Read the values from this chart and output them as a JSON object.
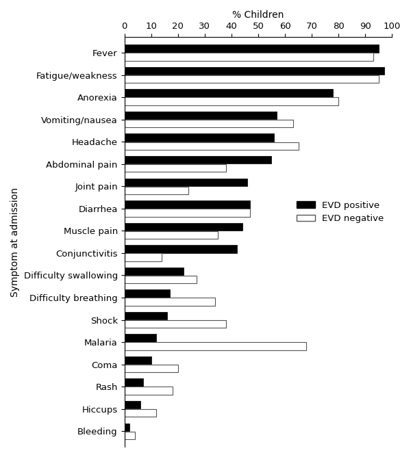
{
  "symptoms": [
    "Fever",
    "Fatigue/weakness",
    "Anorexia",
    "Vomiting/nausea",
    "Headache",
    "Abdominal pain",
    "Joint pain",
    "Diarrhea",
    "Muscle pain",
    "Conjunctivitis",
    "Difficulty swallowing",
    "Difficulty breathing",
    "Shock",
    "Malaria",
    "Coma",
    "Rash",
    "Hiccups",
    "Bleeding"
  ],
  "evd_positive": [
    95,
    97,
    78,
    57,
    56,
    55,
    46,
    47,
    44,
    42,
    22,
    17,
    16,
    12,
    10,
    7,
    6,
    2
  ],
  "evd_negative": [
    93,
    95,
    80,
    63,
    65,
    38,
    24,
    47,
    35,
    14,
    27,
    34,
    38,
    68,
    20,
    18,
    12,
    4
  ],
  "xlabel": "% Children",
  "ylabel": "Symptom at admission",
  "xlim": [
    0,
    100
  ],
  "positive_color": "#000000",
  "negative_color": "#ffffff",
  "negative_edgecolor": "#555555",
  "legend_positive": "EVD positive",
  "legend_negative": "EVD negative",
  "tick_fontsize": 9.5,
  "label_fontsize": 10,
  "xticks": [
    0,
    10,
    20,
    30,
    40,
    50,
    60,
    70,
    80,
    90,
    100
  ]
}
